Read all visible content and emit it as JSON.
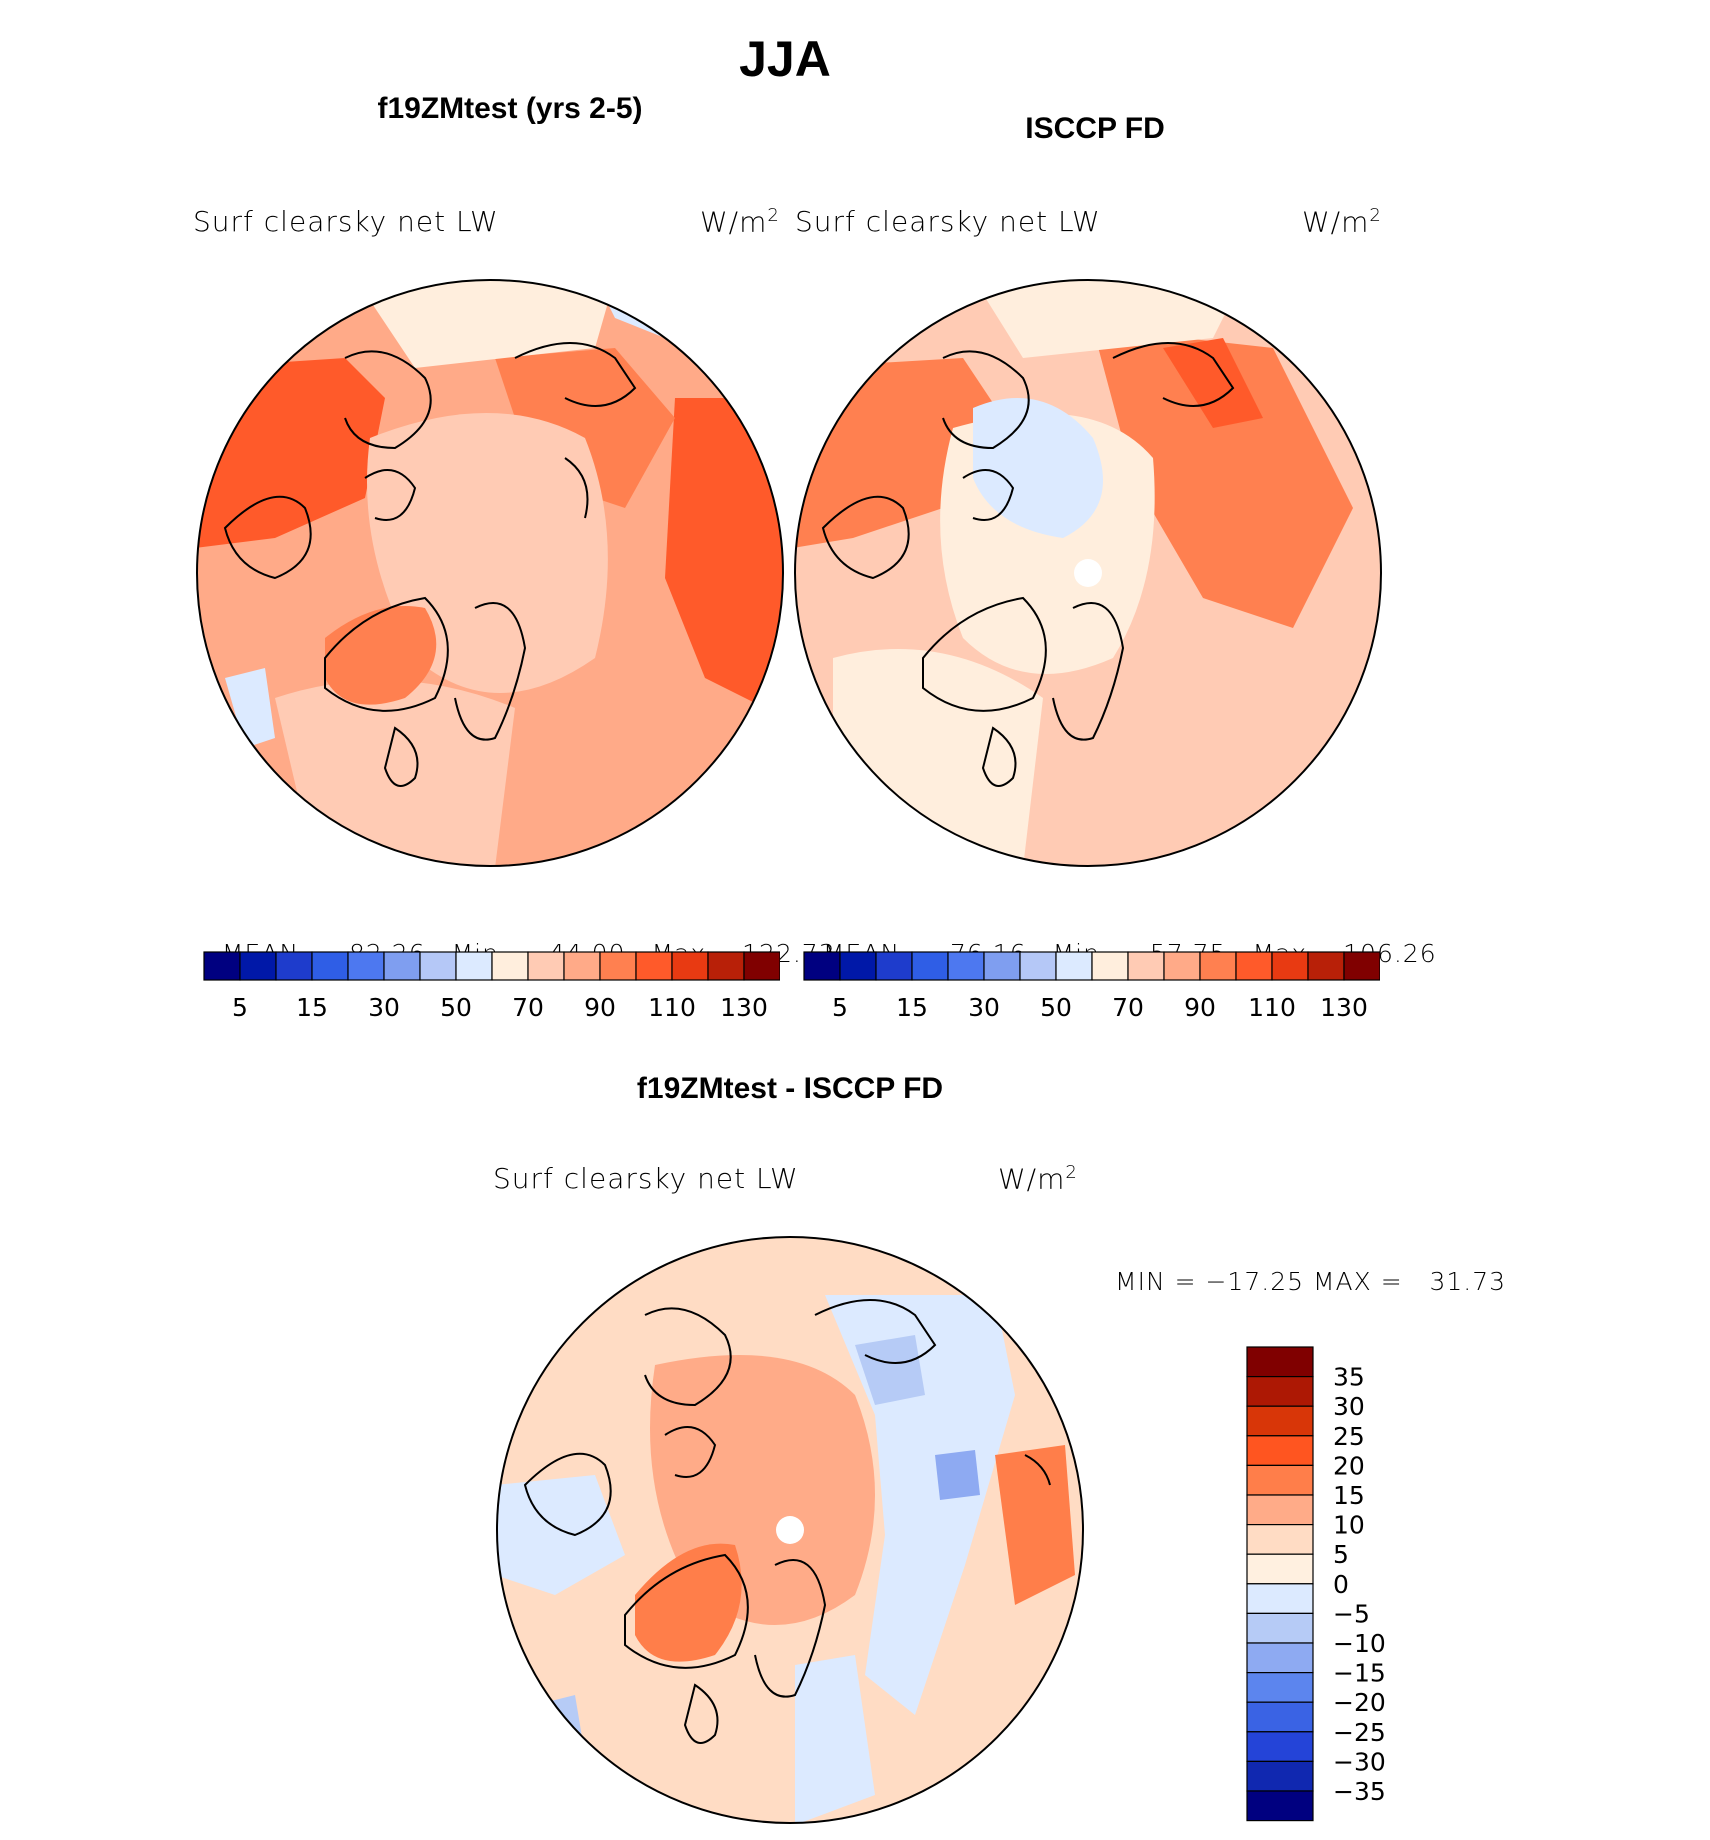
{
  "title": "JJA",
  "panels": [
    {
      "heading": "f19ZMtest (yrs 2-5)",
      "variable": "Surf clearsky net LW",
      "units": "W/m",
      "units_sup": "2",
      "stats": {
        "mean_label": "MEAN=",
        "mean": "82.26",
        "min_label": "Min=",
        "min": "44.00",
        "max_label": "Max=",
        "max": "122.73"
      }
    },
    {
      "heading": "ISCCP FD",
      "variable": "Surf clearsky net LW",
      "units": "W/m",
      "units_sup": "2",
      "stats": {
        "mean_label": "MEAN=",
        "mean": "76.16",
        "min_label": "Min=",
        "min": "57.75",
        "max_label": "Max=",
        "max": "106.26"
      }
    }
  ],
  "diff_panel": {
    "heading": "f19ZMtest - ISCCP FD",
    "variable": "Surf clearsky net LW",
    "units": "W/m",
    "units_sup": "2",
    "minmax": "MIN = −17.25 MAX =   31.73"
  },
  "colorbar": {
    "colors": [
      "#000080",
      "#0018a8",
      "#1e3ccc",
      "#2f5ee6",
      "#4d78f0",
      "#7f9ef0",
      "#b5c8f7",
      "#dceaff",
      "#ffeedd",
      "#ffcbb4",
      "#ffaa88",
      "#ff8050",
      "#ff5a2a",
      "#e83a12",
      "#b82008",
      "#800000"
    ],
    "tick_labels": [
      "5",
      "15",
      "30",
      "50",
      "70",
      "90",
      "110",
      "130"
    ]
  },
  "diff_colorbar": {
    "colors": [
      "#800000",
      "#ad1804",
      "#d83608",
      "#ff5520",
      "#ff7e4a",
      "#ffab88",
      "#ffdcc4",
      "#fff0e0",
      "#dceaff",
      "#b6cbf6",
      "#8eaaf2",
      "#5c85ee",
      "#3a63e4",
      "#2444d8",
      "#1028b0",
      "#000080"
    ],
    "tick_labels": [
      "35",
      "30",
      "25",
      "20",
      "15",
      "10",
      "5",
      "0",
      "−5",
      "−10",
      "−15",
      "−20",
      "−25",
      "−30",
      "−35"
    ]
  },
  "map_colors": {
    "deep": "#ff5a2a",
    "mid": "#ff8a5c",
    "light": "#ffb496",
    "pale": "#ffe0cc",
    "blue": "#dceaff",
    "blue2": "#b5c8f7",
    "blue3": "#7f9ef0"
  }
}
